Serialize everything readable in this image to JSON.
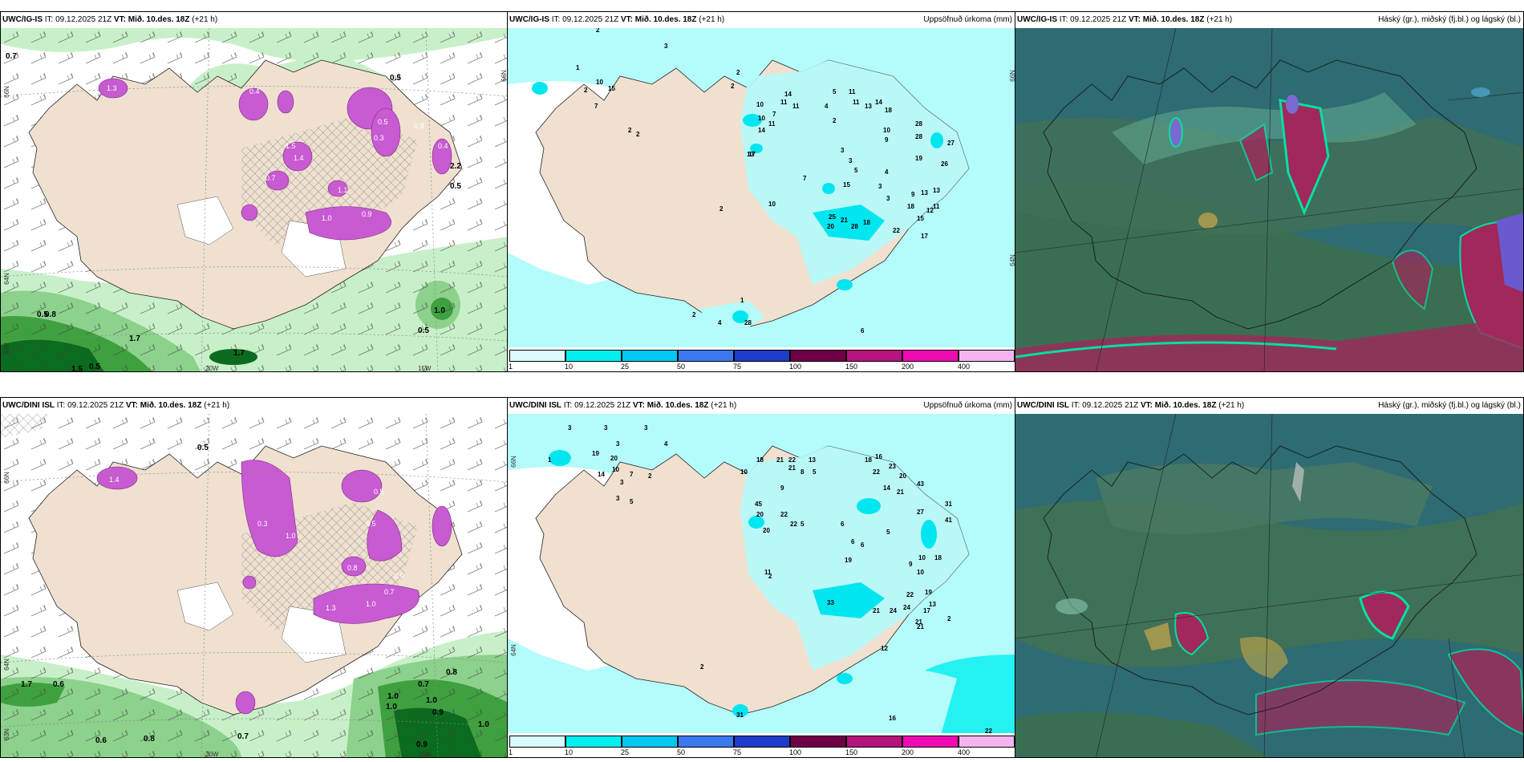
{
  "panels": {
    "p1": {
      "model": "UWC/IG-IS",
      "it": "IT: 09.12.2025 21Z",
      "vt_label": "VT:",
      "vt": "Mið. 10.des. 18Z",
      "lead": "(+21 h)",
      "field": ""
    },
    "p2": {
      "model": "UWC/IG-IS",
      "it": "IT: 09.12.2025 21Z",
      "vt_label": "VT:",
      "vt": "Mið. 10.des. 18Z",
      "lead": "(+21 h)",
      "field": "Uppsöfnuð úrkoma (mm)"
    },
    "p3": {
      "model": "UWC/IG-IS",
      "it": "IT: 09.12.2025 21Z",
      "vt_label": "VT:",
      "vt": "Mið. 10.des. 18Z",
      "lead": "(+21 h)",
      "field": "Háský (gr.), miðský (fj.bl.) og lágský (bl.)"
    },
    "p4": {
      "model": "UWC/DINI ISL",
      "it": "IT: 09.12.2025 21Z",
      "vt_label": "VT:",
      "vt": "Mið. 10.des. 18Z",
      "lead": "(+21 h)",
      "field": ""
    },
    "p5": {
      "model": "UWC/DINI ISL",
      "it": "IT: 09.12.2025 21Z",
      "vt_label": "VT:",
      "vt": "Mið. 10.des. 18Z",
      "lead": "(+21 h)",
      "field": "Uppsöfnuð úrkoma (mm)"
    },
    "p6": {
      "model": "UWC/DINI ISL",
      "it": "IT: 09.12.2025 21Z",
      "vt_label": "VT:",
      "vt": "Mið. 10.des. 18Z",
      "lead": "(+21 h)",
      "field": "Háský (gr.), miðský (fj.bl.) og lágský (bl.)"
    }
  },
  "geo_labels": {
    "lat66": "66N",
    "lat64": "64N",
    "lat63": "63N",
    "lon20": "20W",
    "lon15": "15W"
  },
  "colorbar": {
    "labels": [
      "1",
      "10",
      "25",
      "50",
      "75",
      "100",
      "150",
      "200",
      "400"
    ],
    "colors": [
      "#d9fbfb",
      "#00f0f0",
      "#00c8f0",
      "#3c78f0",
      "#1e3cc8",
      "#6e0046",
      "#b4147e",
      "#f00ab4",
      "#f5b4f0"
    ]
  },
  "snow_values_top": [
    "0.7",
    "0.5",
    "0.5",
    "1.0",
    "0.5",
    "0.8",
    "0.5",
    "1.5",
    "1.7",
    "1.7",
    "1.3",
    "1.5",
    "0.7",
    "1.4",
    "1.0",
    "0.9",
    "0.4",
    "0.5",
    "0.3",
    "0.4",
    "1.1",
    "0.8",
    "2.2",
    "0.5"
  ],
  "snow_values_bottom": [
    "0.5",
    "0.6",
    "0.7",
    "0.6",
    "0.8",
    "0.7",
    "1.0",
    "1.0",
    "1.0",
    "0.9",
    "0.9",
    "0.8",
    "1.0",
    "1.7",
    "1.4",
    "1.0",
    "0.3",
    "0.5",
    "0.0",
    "0.7",
    "0.8",
    "0.5",
    "1.0",
    "1.3"
  ],
  "precip_values_top": [
    "3",
    "2",
    "1",
    "2",
    "10",
    "15",
    "7",
    "2",
    "2",
    "2",
    "2",
    "10",
    "13",
    "14",
    "11",
    "11",
    "10",
    "14",
    "7",
    "11",
    "4",
    "2",
    "5",
    "11",
    "11",
    "13",
    "14",
    "18",
    "10",
    "9",
    "28",
    "28",
    "27",
    "19",
    "26",
    "13",
    "17",
    "7",
    "3",
    "3",
    "5",
    "4",
    "15",
    "3",
    "3",
    "9",
    "13",
    "12",
    "18",
    "15",
    "11",
    "17",
    "22",
    "21",
    "20",
    "28",
    "25",
    "18",
    "10",
    "2",
    "1",
    "2",
    "4",
    "28",
    "6"
  ],
  "precip_values_bottom": [
    "3",
    "3",
    "3",
    "3",
    "4",
    "1",
    "19",
    "20",
    "14",
    "10",
    "7",
    "3",
    "2",
    "3",
    "5",
    "18",
    "21",
    "22",
    "21",
    "10",
    "9",
    "13",
    "8",
    "5",
    "18",
    "16",
    "22",
    "23",
    "20",
    "45",
    "20",
    "22",
    "20",
    "22",
    "14",
    "21",
    "43",
    "27",
    "31",
    "41",
    "6",
    "6",
    "6",
    "5",
    "19",
    "10",
    "18",
    "10",
    "9",
    "33",
    "21",
    "24",
    "21",
    "24",
    "22",
    "19",
    "13",
    "17",
    "21",
    "12",
    "2",
    "2",
    "31",
    "16",
    "22",
    "11",
    "5",
    "2"
  ]
}
